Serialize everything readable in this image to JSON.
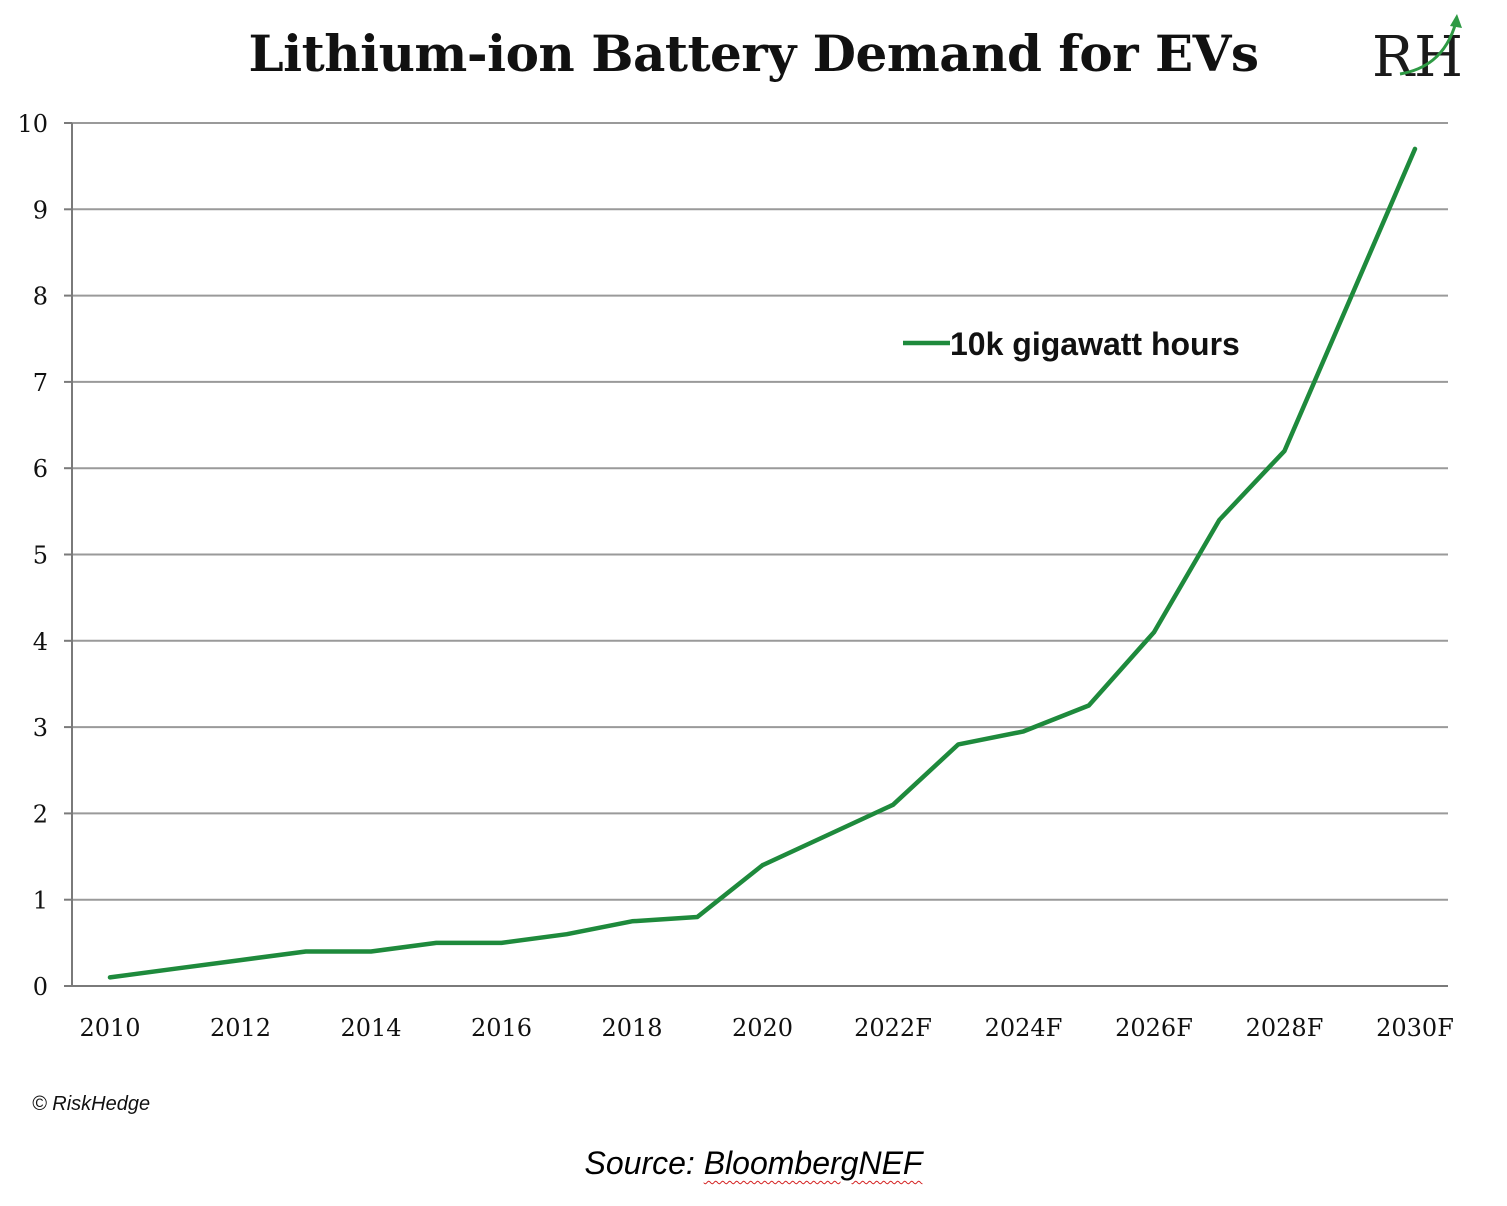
{
  "header": {
    "title": "Lithium-ion Battery Demand for EVs",
    "logo_text": "RH",
    "logo_color": "#1a1a1a",
    "logo_accent_color": "#2e9a44"
  },
  "footer": {
    "copyright": "© RiskHedge",
    "source_prefix": "Source: ",
    "source_name": "BloombergNEF"
  },
  "chart_data": {
    "type": "line",
    "title": "Lithium-ion Battery Demand for EVs",
    "xlabel": "",
    "ylabel": "",
    "x": [
      "2010",
      "2011",
      "2012",
      "2013",
      "2014",
      "2015",
      "2016",
      "2017",
      "2018",
      "2019",
      "2020",
      "2021",
      "2022F",
      "2023F",
      "2024F",
      "2025F",
      "2026F",
      "2027F",
      "2028F",
      "2029F",
      "2030F"
    ],
    "x_tick_labels": [
      "2010",
      "2012",
      "2014",
      "2016",
      "2018",
      "2020",
      "2022F",
      "2024F",
      "2026F",
      "2028F",
      "2030F"
    ],
    "y_tick_labels": [
      "0",
      "1",
      "2",
      "3",
      "4",
      "5",
      "6",
      "7",
      "8",
      "9",
      "10"
    ],
    "ylim": [
      0,
      10
    ],
    "grid": true,
    "legend_position": "upper-right",
    "series": [
      {
        "name": "10k gigawatt hours",
        "color": "#1e8a3c",
        "values": [
          0.1,
          0.2,
          0.3,
          0.4,
          0.4,
          0.5,
          0.5,
          0.6,
          0.75,
          0.8,
          1.4,
          1.75,
          2.1,
          2.8,
          2.95,
          3.25,
          4.1,
          5.4,
          6.2,
          7.95,
          9.7
        ]
      }
    ]
  }
}
